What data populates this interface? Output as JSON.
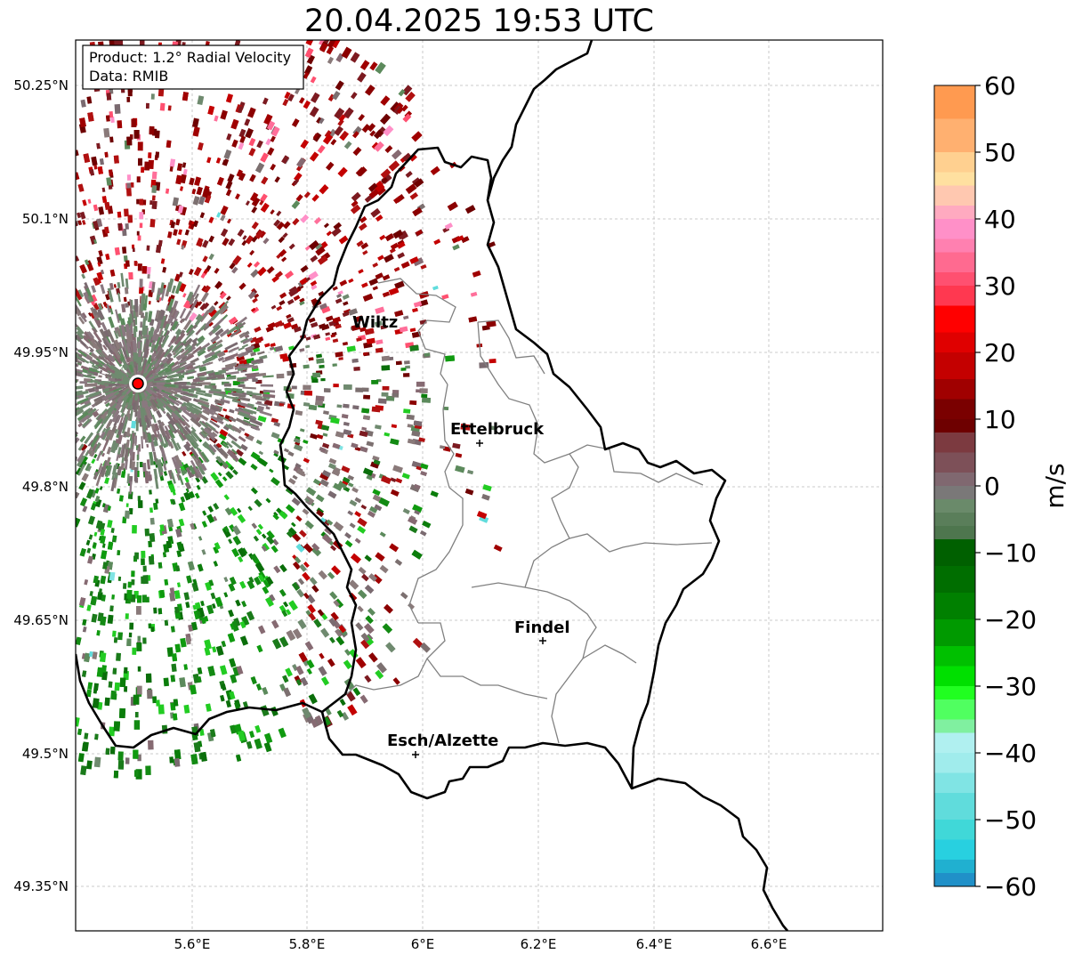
{
  "title": "20.04.2025 19:53 UTC",
  "info_box": {
    "product": "Product: 1.2° Radial Velocity",
    "data_source": "Data: RMIB"
  },
  "colorbar": {
    "unit_label": "m/s",
    "min": -60,
    "max": 60,
    "ticks": [
      "60",
      "50",
      "40",
      "30",
      "20",
      "10",
      "0",
      "−10",
      "−20",
      "−30",
      "−40",
      "−50",
      "−60"
    ]
  },
  "axes": {
    "lat_ticks": [
      "50.25°N",
      "50.1°N",
      "49.95°N",
      "49.8°N",
      "49.65°N",
      "49.5°N",
      "49.35°N"
    ],
    "lon_ticks": [
      "5.6°E",
      "5.8°E",
      "6°E",
      "6.2°E",
      "6.4°E",
      "6.6°E"
    ]
  },
  "cities": [
    {
      "name": "Wiltz"
    },
    {
      "name": "Ettelbruck"
    },
    {
      "name": "Findel"
    },
    {
      "name": "Esch/Alzette"
    }
  ],
  "colors": {
    "strong_green": "#0b7d0b",
    "bright_green": "#22cc22",
    "neutral_gray": "#7c7070",
    "gray_green": "#5c8a5c",
    "dark_red": "#8b0000",
    "red": "#c40000",
    "pink": "#ff6f9a",
    "radar_marker": "#ff0000"
  }
}
